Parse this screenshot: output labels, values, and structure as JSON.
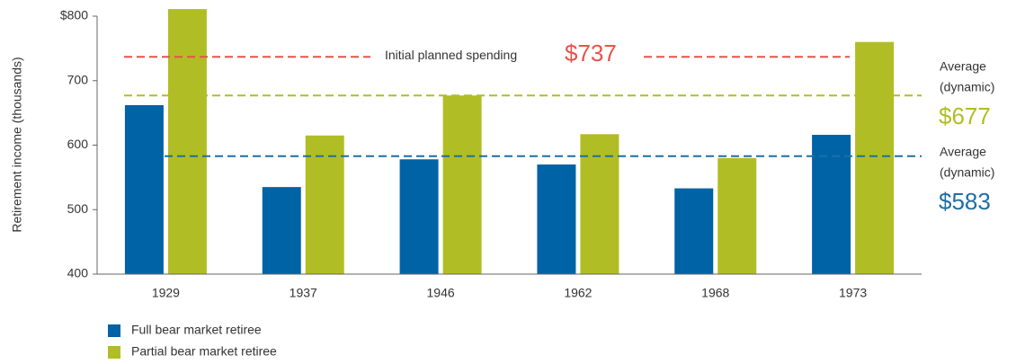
{
  "chart_data": {
    "type": "bar",
    "y_axis_label": "Retirement income (thousands)",
    "categories": [
      "1929",
      "1937",
      "1946",
      "1962",
      "1968",
      "1973"
    ],
    "series": [
      {
        "name": "Full bear market retiree",
        "color": "#0063a5",
        "values": [
          662,
          535,
          578,
          570,
          533,
          616
        ]
      },
      {
        "name": "Partial bear market retiree",
        "color": "#b1bd25",
        "values": [
          811,
          615,
          677,
          617,
          580,
          760
        ]
      }
    ],
    "ylim": [
      400,
      800
    ],
    "yticks": [
      400,
      500,
      600,
      700,
      {
        "value": 800,
        "label": "$800"
      }
    ],
    "reference_lines": [
      {
        "label_lines": [
          "Initial planned spending"
        ],
        "value": 737,
        "value_label": "$737",
        "color": "#e5534b"
      },
      {
        "label_lines": [
          "Average",
          "(dynamic)"
        ],
        "value": 677,
        "value_label": "$677",
        "color": "#b1bd25"
      },
      {
        "label_lines": [
          "Average",
          "(dynamic)"
        ],
        "value": 583,
        "value_label": "$583",
        "color": "#1d6fa5"
      }
    ]
  }
}
